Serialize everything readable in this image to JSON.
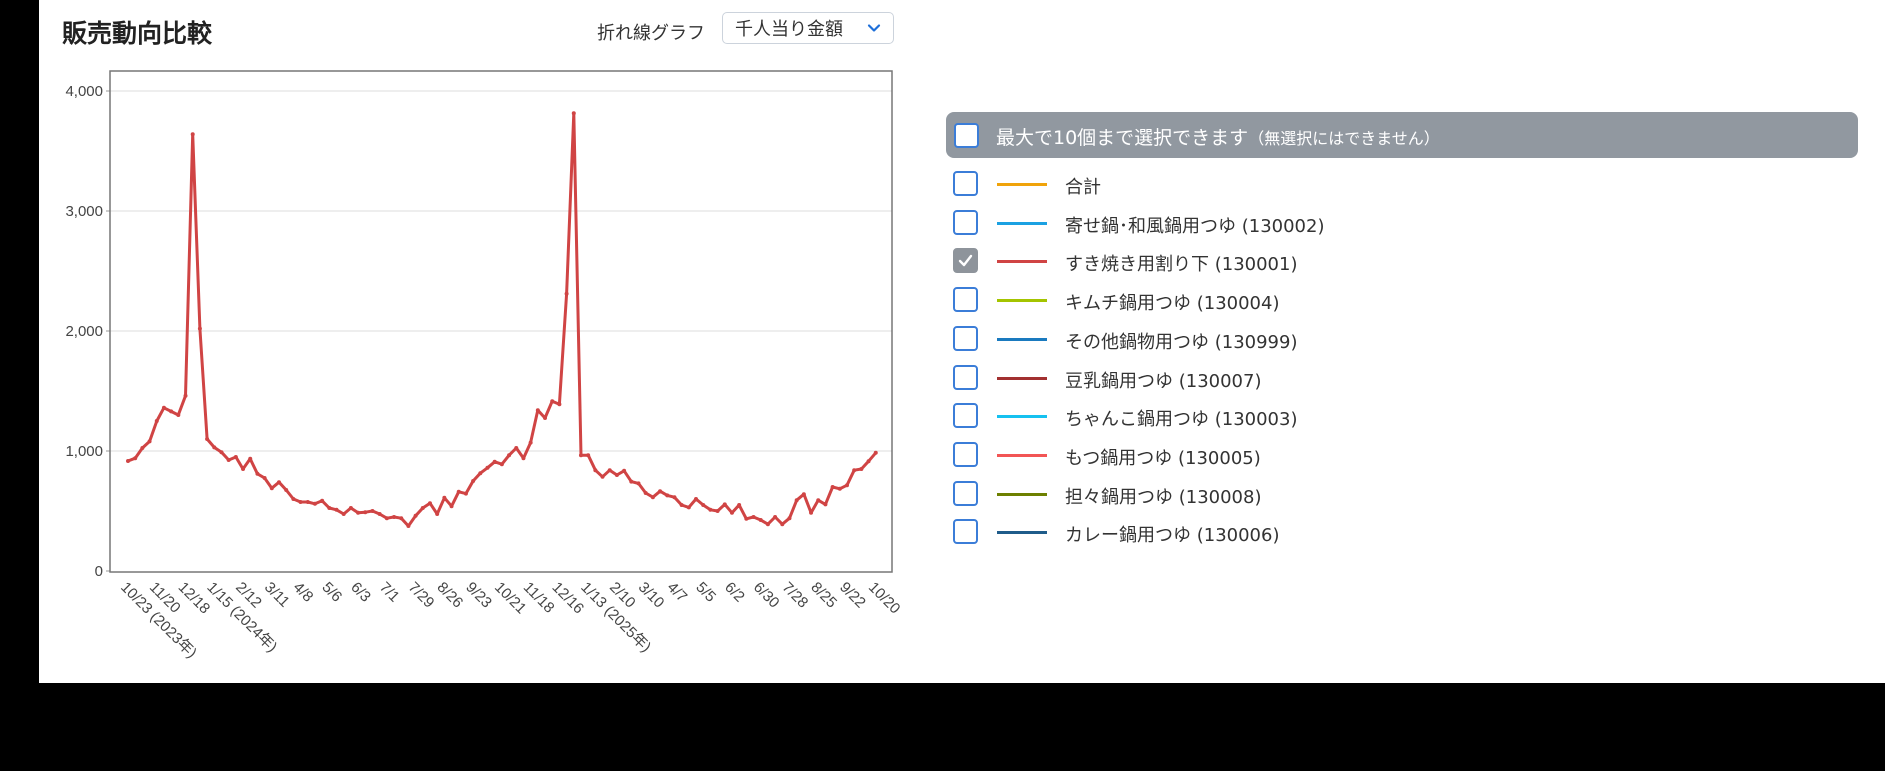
{
  "header": {
    "title": "販売動向比較",
    "chart_type_label": "折れ線グラフ",
    "metric_select": {
      "selected": "千人当り金額",
      "icon": "chevron-down-icon"
    }
  },
  "legend": {
    "header_text": "最大で10個まで選択できます",
    "header_note": "（無選択にはできません）",
    "header_checked": false,
    "items": [
      {
        "label": "合計",
        "color": "#f0a30a",
        "checked": false
      },
      {
        "label": "寄せ鍋･和風鍋用つゆ (130002)",
        "color": "#1ba1e2",
        "checked": false
      },
      {
        "label": "すき焼き用割り下 (130001)",
        "color": "#d04444",
        "checked": true
      },
      {
        "label": "キムチ鍋用つゆ (130004)",
        "color": "#a4c400",
        "checked": false
      },
      {
        "label": "その他鍋物用つゆ (130999)",
        "color": "#1a7abf",
        "checked": false
      },
      {
        "label": "豆乳鍋用つゆ (130007)",
        "color": "#a23030",
        "checked": false
      },
      {
        "label": "ちゃんこ鍋用つゆ (130003)",
        "color": "#15c1f0",
        "checked": false
      },
      {
        "label": "もつ鍋用つゆ (130005)",
        "color": "#f25555",
        "checked": false
      },
      {
        "label": "担々鍋用つゆ (130008)",
        "color": "#6d8000",
        "checked": false
      },
      {
        "label": "カレー鍋用つゆ (130006)",
        "color": "#1f5c8a",
        "checked": false
      }
    ]
  },
  "chart_data": {
    "type": "line",
    "title": "販売動向比較",
    "xlabel": "",
    "ylabel": "千人当り金額",
    "ylim": [
      0,
      4000
    ],
    "yticks": [
      "0",
      "1,000",
      "2,000",
      "3,000",
      "4,000"
    ],
    "grid": true,
    "legend_position": "right",
    "x_tick_labels": [
      "10/23 (2023年)",
      "11/20",
      "12/18",
      "1/15 (2024年)",
      "2/12",
      "3/11",
      "4/8",
      "5/6",
      "6/3",
      "7/1",
      "7/29",
      "8/26",
      "9/23",
      "10/21",
      "11/18",
      "12/16",
      "1/13 (2025年)",
      "2/10",
      "3/10",
      "4/7",
      "5/5",
      "6/2",
      "6/30",
      "7/28",
      "8/25",
      "9/22",
      "10/20"
    ],
    "x_tick_every": 4,
    "x_start": "2023-10-23",
    "x_end": "2025-10-20",
    "x_interval": "weekly",
    "series": [
      {
        "name": "すき焼き用割り下 (130001)",
        "color": "#d04444",
        "values": [
          917,
          940,
          1025,
          1080,
          1250,
          1360,
          1330,
          1300,
          1460,
          3640,
          2020,
          1100,
          1030,
          990,
          925,
          950,
          850,
          935,
          810,
          775,
          690,
          740,
          675,
          600,
          575,
          575,
          560,
          585,
          525,
          510,
          475,
          525,
          485,
          490,
          500,
          475,
          440,
          450,
          440,
          375,
          460,
          525,
          565,
          475,
          610,
          540,
          660,
          645,
          750,
          815,
          860,
          910,
          890,
          965,
          1025,
          940,
          1070,
          1340,
          1275,
          1415,
          1390,
          2310,
          3815,
          965,
          965,
          840,
          785,
          840,
          800,
          835,
          745,
          730,
          650,
          615,
          665,
          630,
          615,
          550,
          530,
          600,
          550,
          510,
          500,
          555,
          485,
          550,
          435,
          450,
          425,
          390,
          450,
          390,
          440,
          590,
          640,
          485,
          590,
          555,
          700,
          685,
          715,
          840,
          850,
          915,
          985
        ]
      }
    ]
  }
}
